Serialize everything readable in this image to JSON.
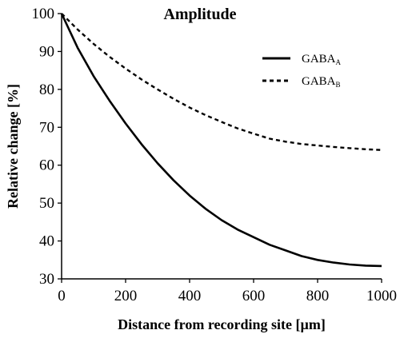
{
  "chart_data": {
    "type": "line",
    "title": "Amplitude",
    "xlabel": "Distance from recording site [µm]",
    "ylabel": "Relative change [%]",
    "xlim": [
      0,
      1000
    ],
    "ylim": [
      30,
      100
    ],
    "xticks": [
      "0",
      "200",
      "400",
      "600",
      "800",
      "1000"
    ],
    "yticks": [
      "30",
      "40",
      "50",
      "60",
      "70",
      "80",
      "90",
      "100"
    ],
    "grid": false,
    "legend_position": "top-right",
    "series": [
      {
        "name": "GABA",
        "name_subscript": "A",
        "style": "solid",
        "color": "#000000",
        "x": [
          0,
          50,
          100,
          150,
          200,
          250,
          300,
          350,
          400,
          450,
          500,
          550,
          600,
          650,
          700,
          750,
          800,
          850,
          900,
          950,
          1000
        ],
        "y": [
          100,
          91,
          83.5,
          77,
          71,
          65.5,
          60.5,
          56,
          52,
          48.5,
          45.5,
          43,
          41,
          39,
          37.5,
          36,
          35,
          34.3,
          33.8,
          33.5,
          33.4
        ]
      },
      {
        "name": "GABA",
        "name_subscript": "B",
        "style": "dashed",
        "color": "#000000",
        "x": [
          0,
          50,
          100,
          150,
          200,
          250,
          300,
          350,
          400,
          450,
          500,
          550,
          600,
          650,
          700,
          750,
          800,
          850,
          900,
          950,
          1000
        ],
        "y": [
          100,
          95.8,
          92,
          88.6,
          85.5,
          82.6,
          80,
          77.5,
          75.2,
          73.2,
          71.4,
          69.7,
          68.3,
          67,
          66.2,
          65.6,
          65.2,
          64.8,
          64.5,
          64.2,
          64
        ]
      }
    ]
  }
}
